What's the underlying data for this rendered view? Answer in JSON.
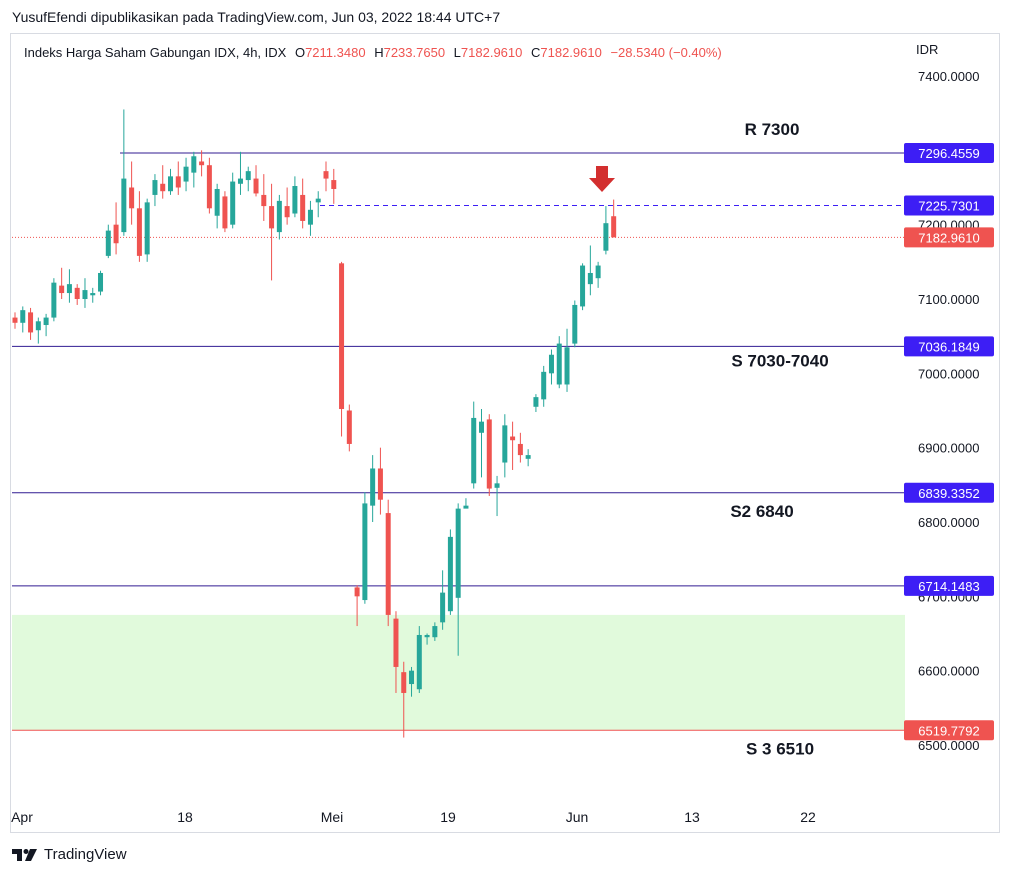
{
  "header": {
    "publisher": "YusufEfendi dipublikasikan pada TradingView.com, Jun 03, 2022 18:44 UTC+7"
  },
  "legend": {
    "symbol": "Indeks Harga Saham Gabungan IDX, 4h, IDX",
    "open_label": "O",
    "open": "7211.3480",
    "high_label": "H",
    "high": "7233.7650",
    "low_label": "L",
    "low": "7182.9610",
    "close_label": "C",
    "close": "7182.9610",
    "change": "−28.5340 (−0.40%)"
  },
  "currency": "IDR",
  "footer": {
    "brand": "TradingView",
    "logo_icon": "tradingview-logo-icon"
  },
  "colors": {
    "up": "#26a69a",
    "down": "#ef5350",
    "level": "#311b92",
    "label_bg": "#3d1ef5",
    "zone": "#e1fadc",
    "arrow": "#d32f2f"
  },
  "chart_data": {
    "type": "candlestick",
    "ylim": [
      6465,
      7470
    ],
    "x_ticks": [
      "Apr",
      "18",
      "Mei",
      "19",
      "Jun",
      "13",
      "22"
    ],
    "y_ticks": [
      "6500.0000",
      "6600.0000",
      "6700.0000",
      "6800.0000",
      "6900.0000",
      "7000.0000",
      "7100.0000",
      "7200.0000",
      "7300.0000",
      "7400.0000"
    ],
    "levels": [
      {
        "price": 7296.4559,
        "label": "7296.4559",
        "note": "R 7300"
      },
      {
        "price": 7036.1849,
        "label": "7036.1849",
        "note": "S 7030-7040"
      },
      {
        "price": 6839.3352,
        "label": "6839.3352",
        "note": "S2 6840"
      },
      {
        "price": 6714.1483,
        "label": "6714.1483",
        "note": ""
      },
      {
        "price": 6519.7792,
        "label": "6519.7792",
        "note": "S 3 6510"
      }
    ],
    "dashed_level": {
      "price": 7225.7301,
      "label": "7225.7301"
    },
    "last_price": {
      "price": 7182.961,
      "label": "7182.9610"
    },
    "demand_zone": [
      6520,
      6675
    ],
    "candles": [
      [
        7075,
        7082,
        7060,
        7068
      ],
      [
        7068,
        7090,
        7055,
        7085
      ],
      [
        7082,
        7088,
        7045,
        7055
      ],
      [
        7058,
        7075,
        7040,
        7070
      ],
      [
        7065,
        7080,
        7050,
        7075
      ],
      [
        7075,
        7128,
        7070,
        7122
      ],
      [
        7118,
        7142,
        7100,
        7108
      ],
      [
        7108,
        7140,
        7095,
        7120
      ],
      [
        7115,
        7120,
        7092,
        7100
      ],
      [
        7100,
        7128,
        7088,
        7112
      ],
      [
        7105,
        7115,
        7095,
        7108
      ],
      [
        7110,
        7138,
        7105,
        7135
      ],
      [
        7158,
        7200,
        7155,
        7192
      ],
      [
        7200,
        7230,
        7160,
        7175
      ],
      [
        7190,
        7355,
        7185,
        7262
      ],
      [
        7250,
        7285,
        7200,
        7222
      ],
      [
        7222,
        7245,
        7150,
        7158
      ],
      [
        7160,
        7235,
        7150,
        7230
      ],
      [
        7240,
        7268,
        7225,
        7260
      ],
      [
        7255,
        7280,
        7235,
        7245
      ],
      [
        7245,
        7275,
        7240,
        7265
      ],
      [
        7265,
        7285,
        7240,
        7250
      ],
      [
        7258,
        7290,
        7245,
        7278
      ],
      [
        7270,
        7298,
        7250,
        7292
      ],
      [
        7285,
        7300,
        7265,
        7280
      ],
      [
        7280,
        7290,
        7215,
        7222
      ],
      [
        7212,
        7255,
        7195,
        7248
      ],
      [
        7238,
        7245,
        7190,
        7195
      ],
      [
        7200,
        7270,
        7195,
        7258
      ],
      [
        7255,
        7298,
        7240,
        7262
      ],
      [
        7260,
        7278,
        7245,
        7272
      ],
      [
        7262,
        7280,
        7238,
        7242
      ],
      [
        7240,
        7268,
        7205,
        7225
      ],
      [
        7225,
        7255,
        7125,
        7195
      ],
      [
        7190,
        7240,
        7180,
        7232
      ],
      [
        7225,
        7250,
        7200,
        7210
      ],
      [
        7215,
        7265,
        7210,
        7252
      ],
      [
        7240,
        7262,
        7195,
        7205
      ],
      [
        7200,
        7232,
        7185,
        7220
      ],
      [
        7230,
        7245,
        7210,
        7235
      ],
      [
        7272,
        7285,
        7245,
        7262
      ],
      [
        7260,
        7275,
        7228,
        7248
      ],
      [
        7148,
        7150,
        6915,
        6952
      ],
      [
        6950,
        6958,
        6895,
        6905
      ],
      [
        6712,
        6715,
        6660,
        6700
      ],
      [
        6695,
        6840,
        6690,
        6825
      ],
      [
        6822,
        6890,
        6800,
        6872
      ],
      [
        6872,
        6900,
        6810,
        6830
      ],
      [
        6812,
        6830,
        6660,
        6675
      ],
      [
        6670,
        6680,
        6570,
        6605
      ],
      [
        6598,
        6612,
        6510,
        6570
      ],
      [
        6582,
        6605,
        6565,
        6600
      ],
      [
        6575,
        6660,
        6570,
        6648
      ],
      [
        6645,
        6650,
        6635,
        6648
      ],
      [
        6645,
        6665,
        6640,
        6660
      ],
      [
        6665,
        6735,
        6655,
        6705
      ],
      [
        6680,
        6790,
        6675,
        6780
      ],
      [
        6698,
        6825,
        6620,
        6818
      ],
      [
        6818,
        6832,
        6820,
        6822
      ],
      [
        6852,
        6962,
        6845,
        6940
      ],
      [
        6920,
        6952,
        6860,
        6935
      ],
      [
        6938,
        6945,
        6835,
        6845
      ],
      [
        6846,
        6862,
        6808,
        6852
      ],
      [
        6880,
        6945,
        6860,
        6930
      ],
      [
        6915,
        6935,
        6870,
        6910
      ],
      [
        6905,
        6920,
        6880,
        6890
      ],
      [
        6885,
        6898,
        6875,
        6890
      ],
      [
        6955,
        6972,
        6948,
        6968
      ],
      [
        6965,
        7010,
        6955,
        7002
      ],
      [
        7000,
        7032,
        6985,
        7025
      ],
      [
        6985,
        7050,
        6980,
        7040
      ],
      [
        6985,
        7060,
        6975,
        7035
      ],
      [
        7040,
        7098,
        7035,
        7092
      ],
      [
        7090,
        7148,
        7085,
        7145
      ],
      [
        7120,
        7172,
        7105,
        7135
      ],
      [
        7128,
        7150,
        7115,
        7145
      ],
      [
        7165,
        7225,
        7160,
        7202
      ],
      [
        7211.348,
        7233.765,
        7182.961,
        7182.961
      ]
    ]
  }
}
